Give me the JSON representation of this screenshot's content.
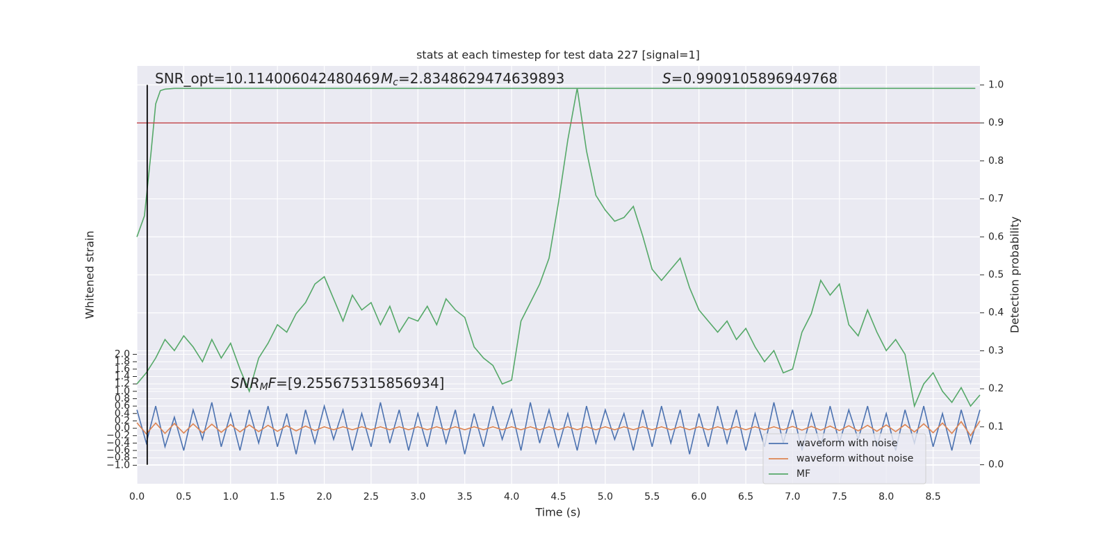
{
  "chart_data": {
    "type": "line",
    "title": "stats at each timestep for test data 227 [signal=1]",
    "xlabel": "Time (s)",
    "ylabel": "Whitened strain",
    "y2label": "Detection probability",
    "xlim": [
      0,
      9.0
    ],
    "ylim": [
      -1.5,
      9.8
    ],
    "y2lim": [
      -0.05,
      1.05
    ],
    "grid": true,
    "legend": "lower right",
    "xticks": [
      {
        "value": 0,
        "label": "0.0"
      },
      0.5,
      {
        "value": 1,
        "label": "1.0"
      },
      1.5,
      {
        "value": 2,
        "label": "2.0"
      },
      2.5,
      {
        "value": 3,
        "label": "3.0"
      },
      3.5,
      {
        "value": 4,
        "label": "4.0"
      },
      4.5,
      {
        "value": 5,
        "label": "5.0"
      },
      5.5,
      {
        "value": 6,
        "label": "6.0"
      },
      6.5,
      {
        "value": 7,
        "label": "7.0"
      },
      7.5,
      {
        "value": 8,
        "label": "8.0"
      },
      8.5
    ],
    "yticks": [
      {
        "value": -1,
        "label": "−1.0"
      },
      {
        "value": -0.8,
        "label": "−0.8"
      },
      {
        "value": -0.6,
        "label": "−0.6"
      },
      {
        "value": -0.4,
        "label": "−0.4"
      },
      {
        "value": -0.2,
        "label": "−0.2"
      },
      {
        "value": 0,
        "label": "0.0"
      },
      0.2,
      0.4,
      0.6,
      0.8,
      {
        "value": 1,
        "label": "1.0"
      },
      1.2,
      1.4,
      1.6,
      1.8,
      {
        "value": 2,
        "label": "2.0"
      }
    ],
    "y2ticks": [
      {
        "value": 0,
        "label": "0.0"
      },
      0.1,
      0.2,
      0.3,
      0.4,
      0.5,
      0.6,
      0.7,
      0.8,
      0.9,
      {
        "value": 1,
        "label": "1.0"
      }
    ],
    "x": [
      0,
      0.1,
      0.2,
      0.3,
      0.4,
      0.5,
      0.6,
      0.7,
      0.8,
      0.9,
      1.0,
      1.1,
      1.2,
      1.3,
      1.4,
      1.5,
      1.6,
      1.7,
      1.8,
      1.9,
      2.0,
      2.1,
      2.2,
      2.3,
      2.4,
      2.5,
      2.6,
      2.7,
      2.8,
      2.9,
      3.0,
      3.1,
      3.2,
      3.3,
      3.4,
      3.5,
      3.6,
      3.7,
      3.8,
      3.9,
      4.0,
      4.1,
      4.2,
      4.3,
      4.4,
      4.5,
      4.6,
      4.7,
      4.8,
      4.9,
      5.0,
      5.1,
      5.2,
      5.3,
      5.4,
      5.5,
      5.6,
      5.7,
      5.8,
      5.9,
      6.0,
      6.1,
      6.2,
      6.3,
      6.4,
      6.5,
      6.6,
      6.7,
      6.8,
      6.9,
      7.0,
      7.1,
      7.2,
      7.3,
      7.4,
      7.5,
      7.6,
      7.7,
      7.8,
      7.9,
      8.0,
      8.1,
      8.2,
      8.3,
      8.4,
      8.5,
      8.6,
      8.7,
      8.8,
      8.9,
      9.0
    ],
    "series": [
      {
        "name": "waveform with noise",
        "color": "#4c72b0",
        "values": [
          0.5,
          -0.4,
          0.6,
          -0.5,
          0.3,
          -0.6,
          0.5,
          -0.3,
          0.7,
          -0.5,
          0.4,
          -0.6,
          0.5,
          -0.4,
          0.6,
          -0.5,
          0.4,
          -0.7,
          0.5,
          -0.4,
          0.6,
          -0.3,
          0.5,
          -0.6,
          0.4,
          -0.5,
          0.7,
          -0.4,
          0.5,
          -0.6,
          0.4,
          -0.5,
          0.6,
          -0.4,
          0.5,
          -0.7,
          0.4,
          -0.5,
          0.6,
          -0.3,
          0.5,
          -0.6,
          0.7,
          -0.4,
          0.5,
          -0.5,
          0.4,
          -0.6,
          0.6,
          -0.4,
          0.5,
          -0.3,
          0.4,
          -0.6,
          0.5,
          -0.5,
          0.6,
          -0.4,
          0.5,
          -0.7,
          0.4,
          -0.5,
          0.6,
          -0.4,
          0.5,
          -0.6,
          0.4,
          -0.5,
          0.7,
          -0.4,
          0.5,
          -0.6,
          0.4,
          -0.5,
          0.6,
          -0.4,
          0.5,
          -0.3,
          0.6,
          -0.5,
          0.4,
          -0.6,
          0.5,
          -0.4,
          0.6,
          -0.5,
          0.4,
          -0.6,
          0.5,
          -0.4,
          0.5
        ]
      },
      {
        "name": "waveform without noise",
        "color": "#dd8452",
        "values": [
          0.15,
          -0.15,
          0.14,
          -0.14,
          0.13,
          -0.13,
          0.12,
          -0.12,
          0.11,
          -0.11,
          0.1,
          -0.1,
          0.09,
          -0.09,
          0.08,
          -0.08,
          0.07,
          -0.07,
          0.06,
          -0.06,
          0.04,
          -0.04,
          0.04,
          -0.04,
          0.04,
          -0.04,
          0.04,
          -0.04,
          0.04,
          -0.04,
          0.04,
          -0.04,
          0.04,
          -0.04,
          0.04,
          -0.04,
          0.04,
          -0.04,
          0.04,
          -0.04,
          0.04,
          -0.04,
          0.04,
          -0.04,
          0.04,
          -0.04,
          0.04,
          -0.04,
          0.04,
          -0.04,
          0.04,
          -0.04,
          0.04,
          -0.04,
          0.04,
          -0.04,
          0.04,
          -0.04,
          0.04,
          -0.04,
          0.04,
          -0.04,
          0.04,
          -0.04,
          0.04,
          -0.04,
          0.04,
          -0.04,
          0.04,
          -0.04,
          0.05,
          -0.05,
          0.05,
          -0.05,
          0.06,
          -0.06,
          0.07,
          -0.07,
          0.08,
          -0.08,
          0.09,
          -0.09,
          0.1,
          -0.1,
          0.12,
          -0.12,
          0.14,
          -0.14,
          0.18,
          -0.2,
          0.2
        ]
      },
      {
        "name": "MF",
        "color": "#55a868",
        "values": [
          1.2,
          1.5,
          1.9,
          2.4,
          2.1,
          2.5,
          2.2,
          1.8,
          2.4,
          1.9,
          2.3,
          1.6,
          1.0,
          1.9,
          2.3,
          2.8,
          2.6,
          3.1,
          3.4,
          3.9,
          4.1,
          3.5,
          2.9,
          3.6,
          3.2,
          3.4,
          2.8,
          3.3,
          2.6,
          3.0,
          2.9,
          3.3,
          2.8,
          3.5,
          3.2,
          3.0,
          2.2,
          1.9,
          1.7,
          1.2,
          1.3,
          2.9,
          3.4,
          3.9,
          4.6,
          6.1,
          7.8,
          9.2,
          7.5,
          6.3,
          5.9,
          5.6,
          5.7,
          6.0,
          5.2,
          4.3,
          4.0,
          4.3,
          4.6,
          3.8,
          3.2,
          2.9,
          2.6,
          2.9,
          2.4,
          2.7,
          2.2,
          1.8,
          2.1,
          1.5,
          1.6,
          2.6,
          3.1,
          4.0,
          3.6,
          3.9,
          2.8,
          2.5,
          3.2,
          2.6,
          2.1,
          2.4,
          2.0,
          0.6,
          1.2,
          1.5,
          1.0,
          0.7,
          1.1,
          0.6,
          0.9
        ]
      },
      {
        "color": "#55a868",
        "axis": "y2",
        "x": [
          0,
          0.08,
          0.15,
          0.2,
          0.25,
          0.3,
          0.4,
          0.5,
          8.95
        ],
        "values": [
          0.6,
          0.655,
          0.82,
          0.95,
          0.985,
          0.989,
          0.991,
          0.991,
          0.991
        ]
      }
    ],
    "hlines": [
      {
        "value": 0.9,
        "axis": "y2",
        "color": "#c44e52"
      }
    ],
    "vlines": [
      {
        "value": 0.11,
        "axis": "y2",
        "ymin": 0,
        "ymax": 1,
        "color": "#000000"
      }
    ],
    "annotations": [
      [
        {
          "text": "SNR_opt=10.114006042480469"
        }
      ],
      [
        {
          "text": "M",
          "italic": true
        },
        {
          "text": "c",
          "italic": true,
          "sub": true
        },
        {
          "text": "=2.8348629474639893"
        }
      ],
      [
        {
          "text": "S",
          "italic": true
        },
        {
          "text": "=0.9909105896949768"
        }
      ],
      [
        {
          "text": "SNR",
          "italic": true
        },
        {
          "text": "M",
          "italic": true,
          "sub": true
        },
        {
          "text": "F",
          "italic": true
        },
        {
          "text": "=[9.255675315856934]"
        }
      ]
    ]
  }
}
